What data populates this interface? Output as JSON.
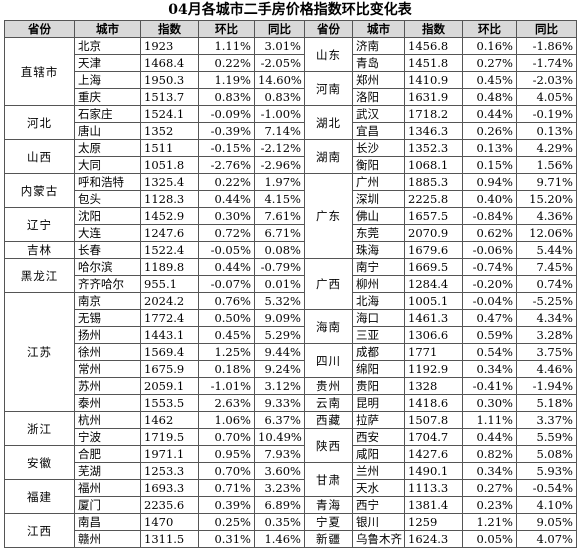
{
  "title": "04月各城市二手房价格指数环比变化表",
  "header": [
    "省份",
    "城市",
    "指数",
    "环比",
    "同比",
    "省份",
    "城市",
    "指数",
    "环比",
    "同比"
  ],
  "left": [
    {
      "province": "直辖市",
      "rows": [
        [
          "北京",
          "1923",
          "1.11%",
          "3.01%"
        ],
        [
          "天津",
          "1468.4",
          "0.22%",
          "-2.05%"
        ],
        [
          "上海",
          "1950.3",
          "1.19%",
          "14.60%"
        ],
        [
          "重庆",
          "1513.7",
          "0.83%",
          "0.83%"
        ]
      ]
    },
    {
      "province": "河北",
      "rows": [
        [
          "石家庄",
          "1524.1",
          "-0.09%",
          "-1.00%"
        ],
        [
          "唐山",
          "1352",
          "-0.39%",
          "7.14%"
        ]
      ]
    },
    {
      "province": "山西",
      "rows": [
        [
          "太原",
          "1511",
          "-0.15%",
          "-2.12%"
        ],
        [
          "大同",
          "1051.8",
          "-2.76%",
          "-2.96%"
        ]
      ]
    },
    {
      "province": "内蒙古",
      "rows": [
        [
          "呼和浩特",
          "1325.4",
          "0.22%",
          "1.97%"
        ],
        [
          "包头",
          "1128.3",
          "0.44%",
          "4.15%"
        ]
      ]
    },
    {
      "province": "辽宁",
      "rows": [
        [
          "沈阳",
          "1452.9",
          "0.30%",
          "7.61%"
        ],
        [
          "大连",
          "1247.6",
          "0.72%",
          "6.71%"
        ]
      ]
    },
    {
      "province": "吉林",
      "rows": [
        [
          "长春",
          "1522.4",
          "-0.05%",
          "0.08%"
        ]
      ]
    },
    {
      "province": "黑龙江",
      "rows": [
        [
          "哈尔滨",
          "1189.8",
          "0.44%",
          "-0.79%"
        ],
        [
          "齐齐哈尔",
          "955.1",
          "-0.07%",
          "0.01%"
        ]
      ]
    },
    {
      "province": "江苏",
      "rows": [
        [
          "南京",
          "2024.2",
          "0.76%",
          "5.32%"
        ],
        [
          "无锡",
          "1772.4",
          "0.50%",
          "9.09%"
        ],
        [
          "扬州",
          "1443.1",
          "0.45%",
          "5.29%"
        ],
        [
          "徐州",
          "1569.4",
          "1.25%",
          "9.44%"
        ],
        [
          "常州",
          "1675.9",
          "0.18%",
          "9.24%"
        ],
        [
          "苏州",
          "2059.1",
          "-1.01%",
          "3.12%"
        ],
        [
          "泰州",
          "1553.5",
          "2.63%",
          "9.33%"
        ]
      ]
    },
    {
      "province": "浙江",
      "rows": [
        [
          "杭州",
          "1462",
          "1.06%",
          "6.37%"
        ],
        [
          "宁波",
          "1719.5",
          "0.70%",
          "10.49%"
        ]
      ]
    },
    {
      "province": "安徽",
      "rows": [
        [
          "合肥",
          "1971.1",
          "0.95%",
          "7.93%"
        ],
        [
          "芜湖",
          "1253.3",
          "0.70%",
          "3.60%"
        ]
      ]
    },
    {
      "province": "福建",
      "rows": [
        [
          "福州",
          "1693.3",
          "0.71%",
          "3.23%"
        ],
        [
          "厦门",
          "2235.6",
          "0.39%",
          "6.89%"
        ]
      ]
    },
    {
      "province": "江西",
      "rows": [
        [
          "南昌",
          "1470",
          "0.25%",
          "0.35%"
        ],
        [
          "赣州",
          "1311.5",
          "0.31%",
          "1.46%"
        ]
      ]
    }
  ],
  "right": [
    {
      "province": "山东",
      "rows": [
        [
          "济南",
          "1456.8",
          "0.16%",
          "-1.86%"
        ],
        [
          "青岛",
          "1451.8",
          "0.27%",
          "-1.74%"
        ]
      ]
    },
    {
      "province": "河南",
      "rows": [
        [
          "郑州",
          "1410.9",
          "0.45%",
          "-2.03%"
        ],
        [
          "洛阳",
          "1631.9",
          "0.48%",
          "4.05%"
        ]
      ]
    },
    {
      "province": "湖北",
      "rows": [
        [
          "武汉",
          "1718.2",
          "0.44%",
          "-0.19%"
        ],
        [
          "宜昌",
          "1346.3",
          "0.26%",
          "0.13%"
        ]
      ]
    },
    {
      "province": "湖南",
      "rows": [
        [
          "长沙",
          "1352.3",
          "0.13%",
          "4.29%"
        ],
        [
          "衡阳",
          "1068.1",
          "0.15%",
          "1.56%"
        ]
      ]
    },
    {
      "province": "广东",
      "rows": [
        [
          "广州",
          "1885.3",
          "0.94%",
          "9.71%"
        ],
        [
          "深圳",
          "2225.8",
          "0.40%",
          "15.20%"
        ],
        [
          "佛山",
          "1657.5",
          "-0.84%",
          "4.36%"
        ],
        [
          "东莞",
          "2070.9",
          "0.62%",
          "12.06%"
        ],
        [
          "珠海",
          "1679.6",
          "-0.06%",
          "5.44%"
        ]
      ]
    },
    {
      "province": "广西",
      "rows": [
        [
          "南宁",
          "1669.5",
          "-0.74%",
          "7.45%"
        ],
        [
          "柳州",
          "1284.4",
          "-0.20%",
          "0.74%"
        ],
        [
          "北海",
          "1005.1",
          "-0.04%",
          "-5.25%"
        ]
      ]
    },
    {
      "province": "海南",
      "rows": [
        [
          "海口",
          "1461.3",
          "0.47%",
          "4.34%"
        ],
        [
          "三亚",
          "1306.6",
          "0.59%",
          "3.28%"
        ]
      ]
    },
    {
      "province": "四川",
      "rows": [
        [
          "成都",
          "1771",
          "0.54%",
          "3.75%"
        ],
        [
          "绵阳",
          "1192.9",
          "0.34%",
          "4.46%"
        ]
      ]
    },
    {
      "province": "贵州",
      "rows": [
        [
          "贵阳",
          "1328",
          "-0.41%",
          "-1.94%"
        ]
      ]
    },
    {
      "province": "云南",
      "rows": [
        [
          "昆明",
          "1418.6",
          "0.30%",
          "5.18%"
        ]
      ]
    },
    {
      "province": "西藏",
      "rows": [
        [
          "拉萨",
          "1507.8",
          "1.11%",
          "3.37%"
        ]
      ]
    },
    {
      "province": "陕西",
      "rows": [
        [
          "西安",
          "1704.7",
          "0.44%",
          "5.59%"
        ],
        [
          "咸阳",
          "1427.6",
          "0.82%",
          "5.08%"
        ]
      ]
    },
    {
      "province": "甘肃",
      "rows": [
        [
          "兰州",
          "1490.1",
          "0.34%",
          "5.93%"
        ],
        [
          "天水",
          "1113.3",
          "0.27%",
          "-0.54%"
        ]
      ]
    },
    {
      "province": "青海",
      "rows": [
        [
          "西宁",
          "1381.4",
          "0.23%",
          "4.10%"
        ]
      ]
    },
    {
      "province": "宁夏",
      "rows": [
        [
          "银川",
          "1259",
          "1.21%",
          "9.05%"
        ]
      ]
    },
    {
      "province": "新疆",
      "rows": [
        [
          "乌鲁木齐",
          "1624.3",
          "0.05%",
          "4.07%"
        ]
      ]
    }
  ]
}
